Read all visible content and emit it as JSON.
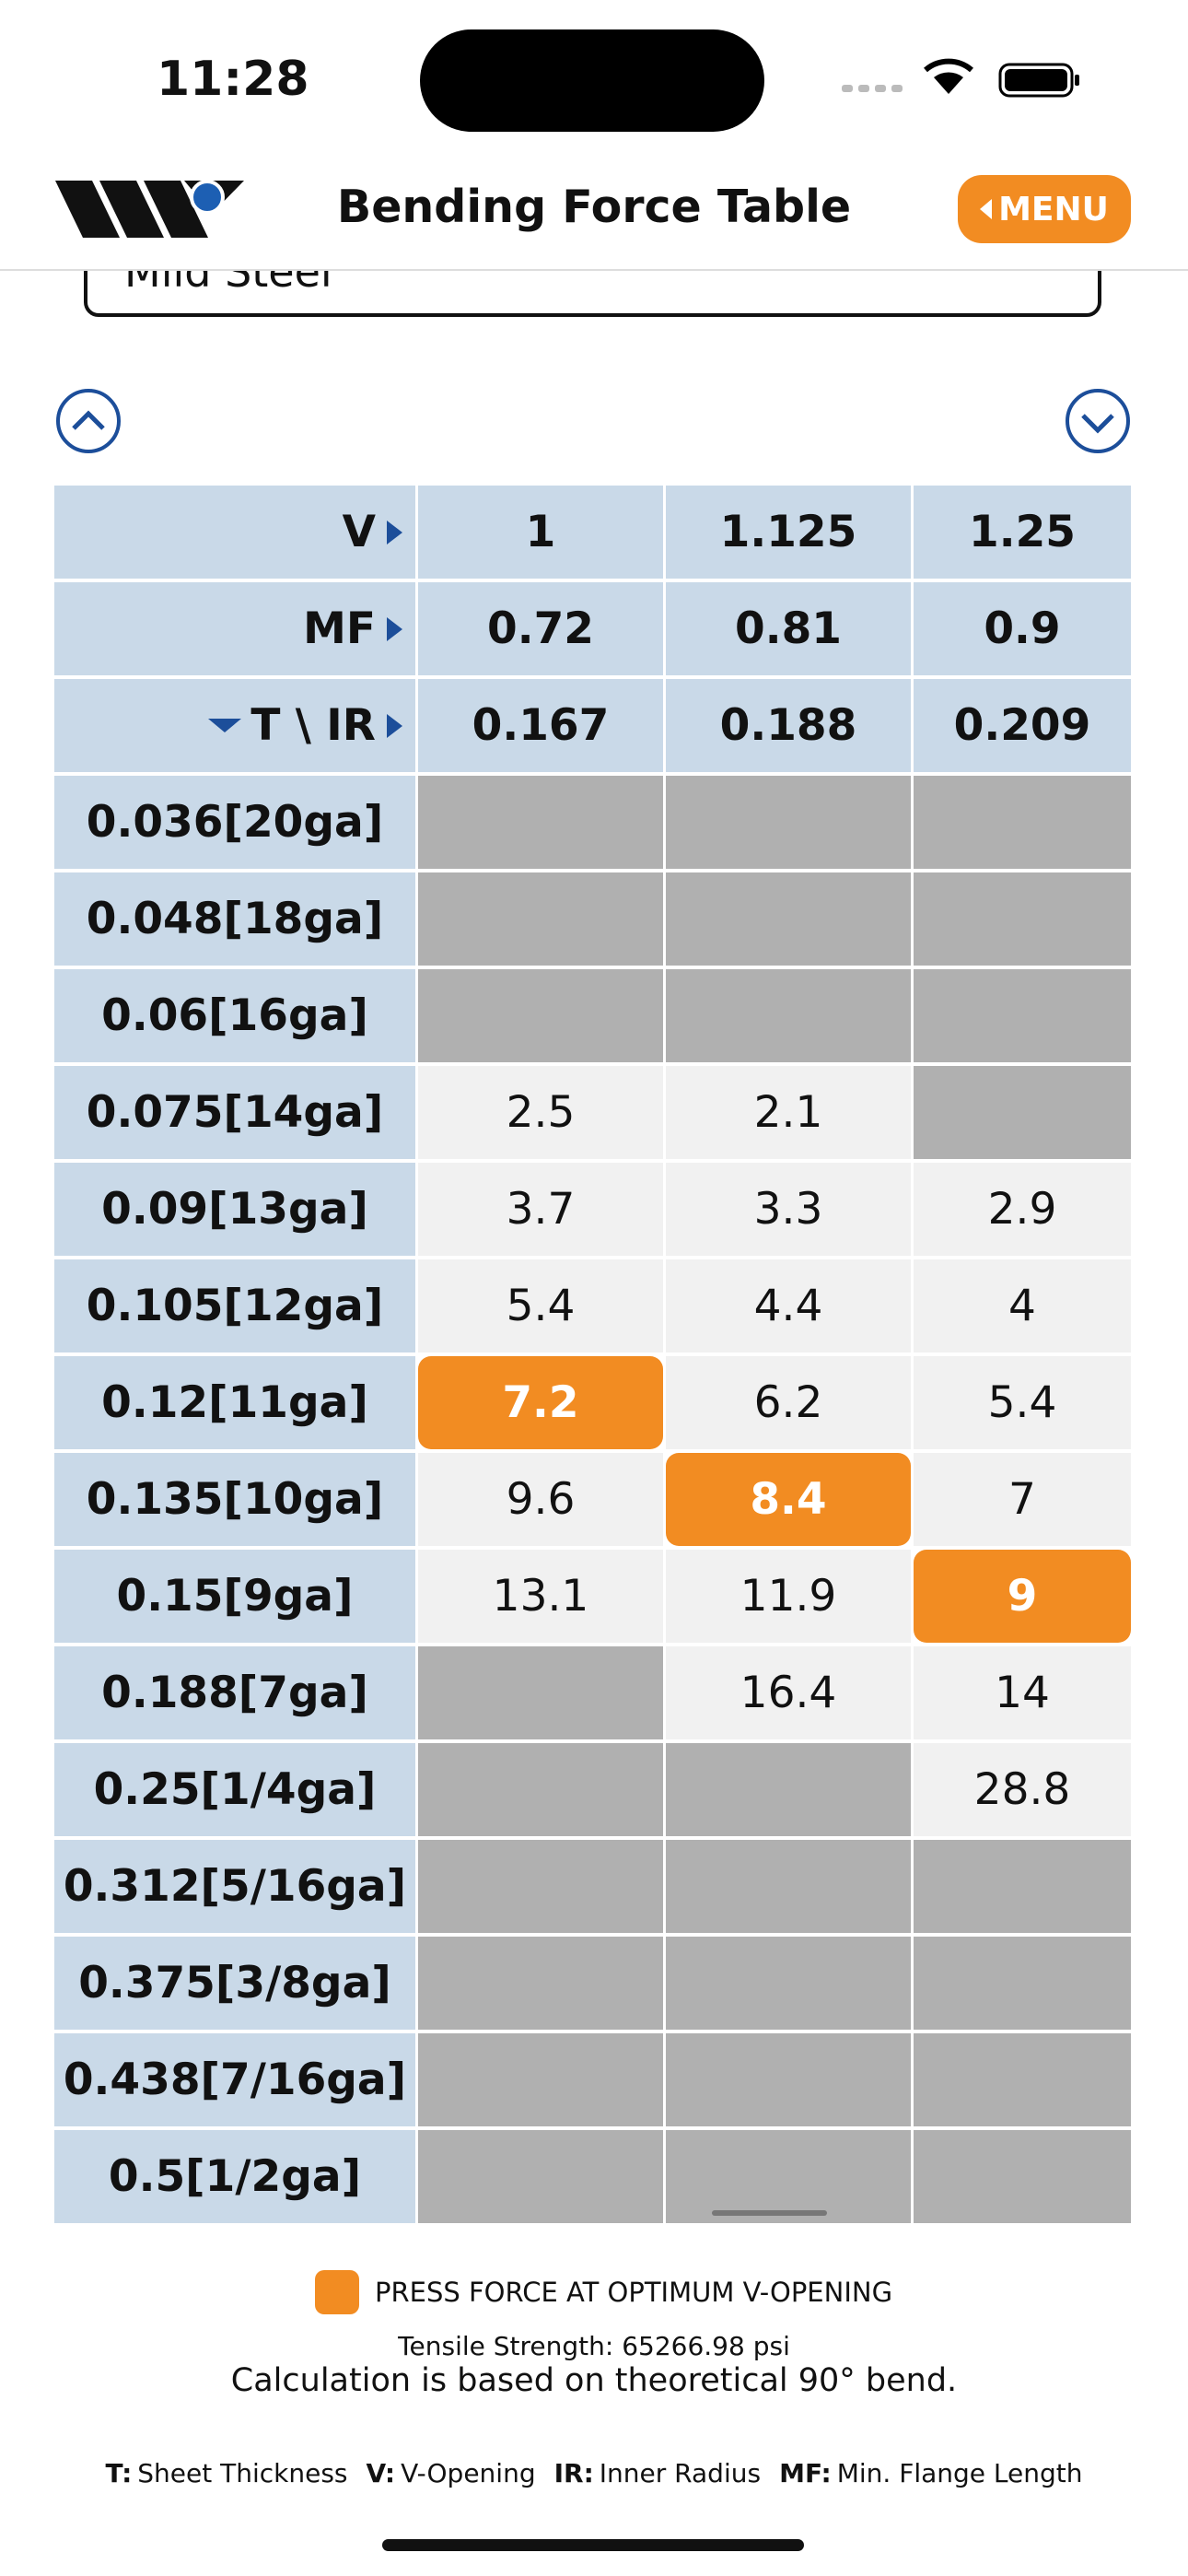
{
  "status": {
    "time": "11:28"
  },
  "header": {
    "title": "Bending Force Table",
    "menu": "MENU"
  },
  "material": "Mild Steel",
  "table": {
    "header_rows": [
      {
        "label": "V",
        "values": [
          "1",
          "1.125",
          "1.25"
        ]
      },
      {
        "label": "MF",
        "values": [
          "0.72",
          "0.81",
          "0.9"
        ]
      },
      {
        "label": "T \\ IR",
        "values": [
          "0.167",
          "0.188",
          "0.209"
        ]
      }
    ],
    "rows": [
      {
        "label": "0.036[20ga]",
        "values": [
          null,
          null,
          null
        ]
      },
      {
        "label": "0.048[18ga]",
        "values": [
          null,
          null,
          null
        ]
      },
      {
        "label": "0.06[16ga]",
        "values": [
          null,
          null,
          null
        ]
      },
      {
        "label": "0.075[14ga]",
        "values": [
          "2.5",
          "2.1",
          null
        ]
      },
      {
        "label": "0.09[13ga]",
        "values": [
          "3.7",
          "3.3",
          "2.9"
        ]
      },
      {
        "label": "0.105[12ga]",
        "values": [
          "5.4",
          "4.4",
          "4"
        ]
      },
      {
        "label": "0.12[11ga]",
        "values": [
          "7.2",
          "6.2",
          "5.4"
        ],
        "optimum": 0
      },
      {
        "label": "0.135[10ga]",
        "values": [
          "9.6",
          "8.4",
          "7"
        ],
        "optimum": 1
      },
      {
        "label": "0.15[9ga]",
        "values": [
          "13.1",
          "11.9",
          "9"
        ],
        "optimum": 2
      },
      {
        "label": "0.188[7ga]",
        "values": [
          null,
          "16.4",
          "14"
        ]
      },
      {
        "label": "0.25[1/4ga]",
        "values": [
          null,
          null,
          "28.8"
        ]
      },
      {
        "label": "0.312[5/16ga]",
        "values": [
          null,
          null,
          null
        ]
      },
      {
        "label": "0.375[3/8ga]",
        "values": [
          null,
          null,
          null
        ]
      },
      {
        "label": "0.438[7/16ga]",
        "values": [
          null,
          null,
          null
        ]
      },
      {
        "label": "0.5[1/2ga]",
        "values": [
          null,
          null,
          null
        ]
      }
    ]
  },
  "legend": "PRESS FORCE AT OPTIMUM V-OPENING",
  "tensile": "Tensile Strength: 65266.98 psi",
  "note": "Calculation is based on theoretical 90° bend.",
  "definitions": [
    {
      "key": "T:",
      "text": "Sheet Thickness"
    },
    {
      "key": "V:",
      "text": "V-Opening"
    },
    {
      "key": "IR:",
      "text": "Inner Radius"
    },
    {
      "key": "MF:",
      "text": "Min. Flange Length"
    }
  ]
}
